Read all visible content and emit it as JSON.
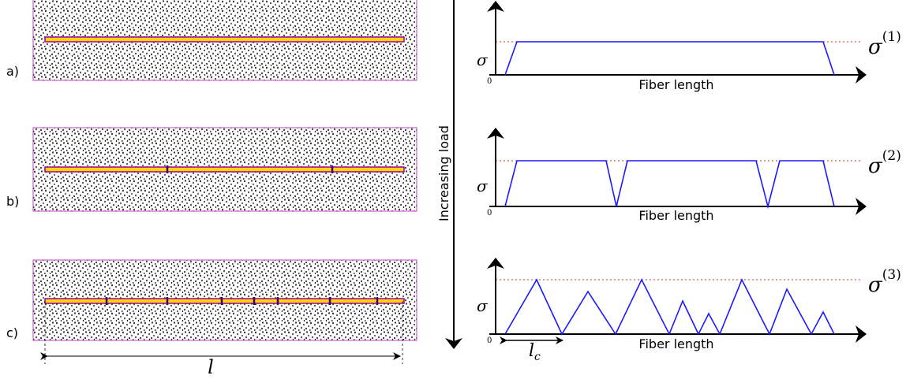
{
  "panels": [
    {
      "label": "a)",
      "sigma": "σ",
      "x_label": "Fiber length",
      "origin": "0",
      "level": "σ",
      "level_sup": "(1)"
    },
    {
      "label": "b)",
      "sigma": "σ",
      "x_label": "Fiber length",
      "origin": "0",
      "level": "σ",
      "level_sup": "(2)"
    },
    {
      "label": "c)",
      "sigma": "σ",
      "x_label": "Fiber length",
      "origin": "0",
      "level": "σ",
      "level_sup": "(3)"
    }
  ],
  "load_label": "Increasing load",
  "length_label": "l",
  "critical_length": {
    "base": "l",
    "sub": "c"
  }
}
